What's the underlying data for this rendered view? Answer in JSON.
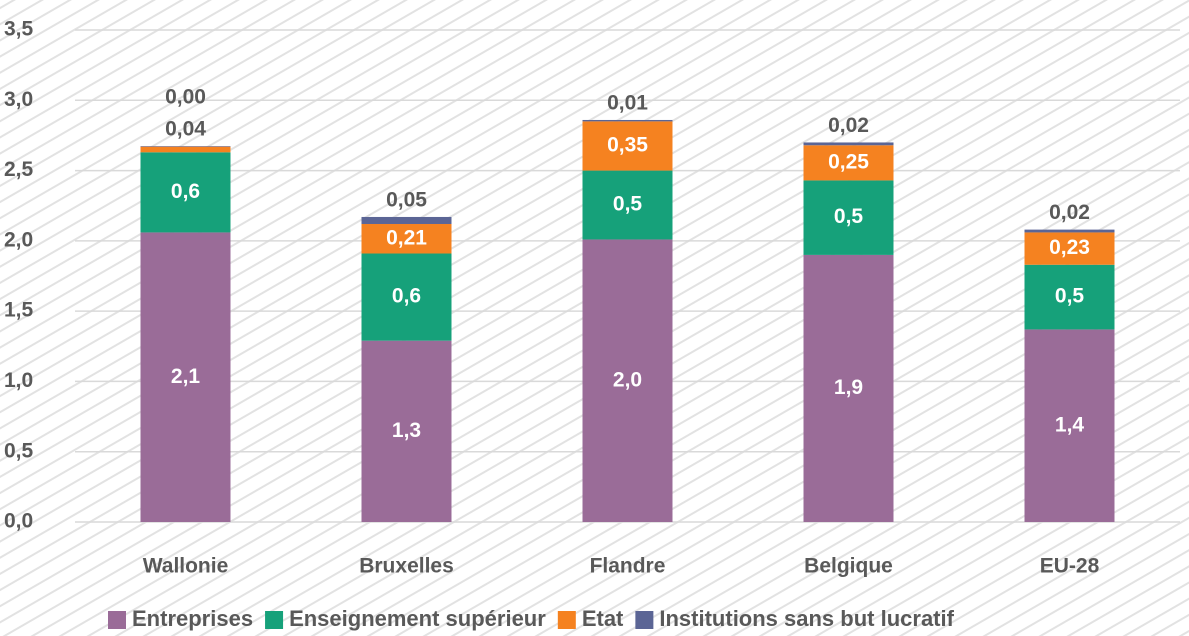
{
  "chart_data": {
    "type": "stacked_bar",
    "categories": [
      "Wallonie",
      "Bruxelles",
      "Flandre",
      "Belgique",
      "EU-28"
    ],
    "series": [
      {
        "name": "Entreprises",
        "color": "#9a6c98",
        "values": [
          2.06,
          1.29,
          2.01,
          1.9,
          1.37
        ],
        "value_labels": [
          "2,1",
          "1,3",
          "2,0",
          "1,9",
          "1,4"
        ]
      },
      {
        "name": "Enseignement supérieur",
        "color": "#16a17a",
        "values": [
          0.57,
          0.62,
          0.49,
          0.53,
          0.46
        ],
        "value_labels": [
          "0,6",
          "0,6",
          "0,5",
          "0,5",
          "0,5"
        ]
      },
      {
        "name": "Etat",
        "color": "#f58220",
        "values": [
          0.04,
          0.21,
          0.35,
          0.25,
          0.23
        ],
        "value_labels": [
          "0,04",
          "0,21",
          "0,35",
          "0,25",
          "0,23"
        ]
      },
      {
        "name": "Institutions sans but lucratif",
        "color": "#5b6595",
        "values": [
          0.004,
          0.05,
          0.01,
          0.02,
          0.02
        ],
        "value_labels": [
          "0,00",
          "0,05",
          "0,01",
          "0,02",
          "0,02"
        ]
      }
    ],
    "ylim": [
      0,
      3.5
    ],
    "yticks": [
      {
        "value": 0,
        "label": "0,0"
      },
      {
        "value": 0.5,
        "label": "0,5"
      },
      {
        "value": 1,
        "label": "1,0"
      },
      {
        "value": 1.5,
        "label": "1,5"
      },
      {
        "value": 2,
        "label": "2,0"
      },
      {
        "value": 2.5,
        "label": "2,5"
      },
      {
        "value": 3,
        "label": "3,0"
      },
      {
        "value": 3.5,
        "label": "3,5"
      }
    ],
    "grid": true,
    "legend": "bottom"
  }
}
